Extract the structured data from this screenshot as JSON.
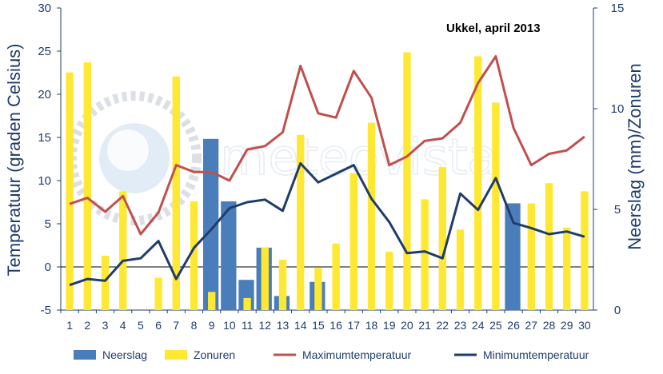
{
  "watermark": {
    "text": "meteovista"
  },
  "chart_data": {
    "type": "bar+line",
    "title": "Ukkel, april 2013",
    "ylabel_left": "Temperatuur (graden Celsius)",
    "ylabel_right": "Neerslag (mm)/Zonuren",
    "xlabel": "",
    "ylim_left": [
      -5,
      30
    ],
    "yticks_left": [
      "-5",
      "0",
      "5",
      "10",
      "15",
      "20",
      "25",
      "30"
    ],
    "ylim_right": [
      0,
      15
    ],
    "yticks_right": [
      "0",
      "5",
      "10",
      "15"
    ],
    "categories": [
      "1",
      "2",
      "3",
      "4",
      "5",
      "6",
      "7",
      "8",
      "9",
      "10",
      "11",
      "12",
      "13",
      "14",
      "15",
      "16",
      "17",
      "18",
      "19",
      "20",
      "21",
      "22",
      "23",
      "24",
      "25",
      "26",
      "27",
      "28",
      "29",
      "30"
    ],
    "grid": false,
    "legend_position": "bottom",
    "series": [
      {
        "name": "Neerslag",
        "type": "bar",
        "axis": "right",
        "color": "#4a7ebb",
        "values": [
          0,
          0,
          0,
          0,
          0,
          0,
          0,
          0,
          8.5,
          5.4,
          1.5,
          3.1,
          0.7,
          0,
          1.4,
          0,
          0,
          0,
          0,
          0,
          0,
          0,
          0,
          0,
          0,
          5.3,
          0,
          0,
          0,
          0
        ]
      },
      {
        "name": "Zonuren",
        "type": "bar",
        "axis": "right",
        "color": "#ffe832",
        "values": [
          11.8,
          12.3,
          2.7,
          5.9,
          0,
          1.6,
          11.6,
          5.4,
          0.9,
          0,
          0.6,
          3.1,
          2.5,
          8.7,
          2.1,
          3.3,
          6.8,
          9.3,
          2.9,
          12.8,
          5.5,
          7.1,
          4.0,
          12.6,
          10.3,
          0,
          5.3,
          6.3,
          4.1,
          5.9
        ]
      },
      {
        "name": "Maximumtemperatuur",
        "type": "line",
        "axis": "left",
        "color": "#c0504d",
        "values": [
          7.3,
          8.0,
          6.4,
          8.2,
          3.8,
          6.3,
          11.8,
          11.0,
          11.0,
          10.0,
          13.6,
          14.0,
          15.6,
          23.3,
          17.8,
          17.3,
          22.7,
          19.6,
          11.8,
          12.8,
          14.6,
          14.9,
          16.7,
          21.3,
          24.4,
          16.1,
          11.8,
          13.1,
          13.5,
          15.1
        ]
      },
      {
        "name": "Minimumtemperatuur",
        "type": "line",
        "axis": "left",
        "color": "#1f3c6b",
        "values": [
          -2.1,
          -1.4,
          -1.6,
          0.7,
          1.0,
          3.0,
          -1.4,
          2.2,
          4.4,
          6.8,
          7.5,
          7.8,
          6.5,
          12.0,
          9.8,
          10.8,
          11.8,
          7.9,
          5.2,
          1.6,
          1.8,
          1.0,
          8.5,
          6.6,
          10.3,
          5.1,
          4.5,
          3.8,
          4.1,
          3.5
        ]
      }
    ]
  }
}
